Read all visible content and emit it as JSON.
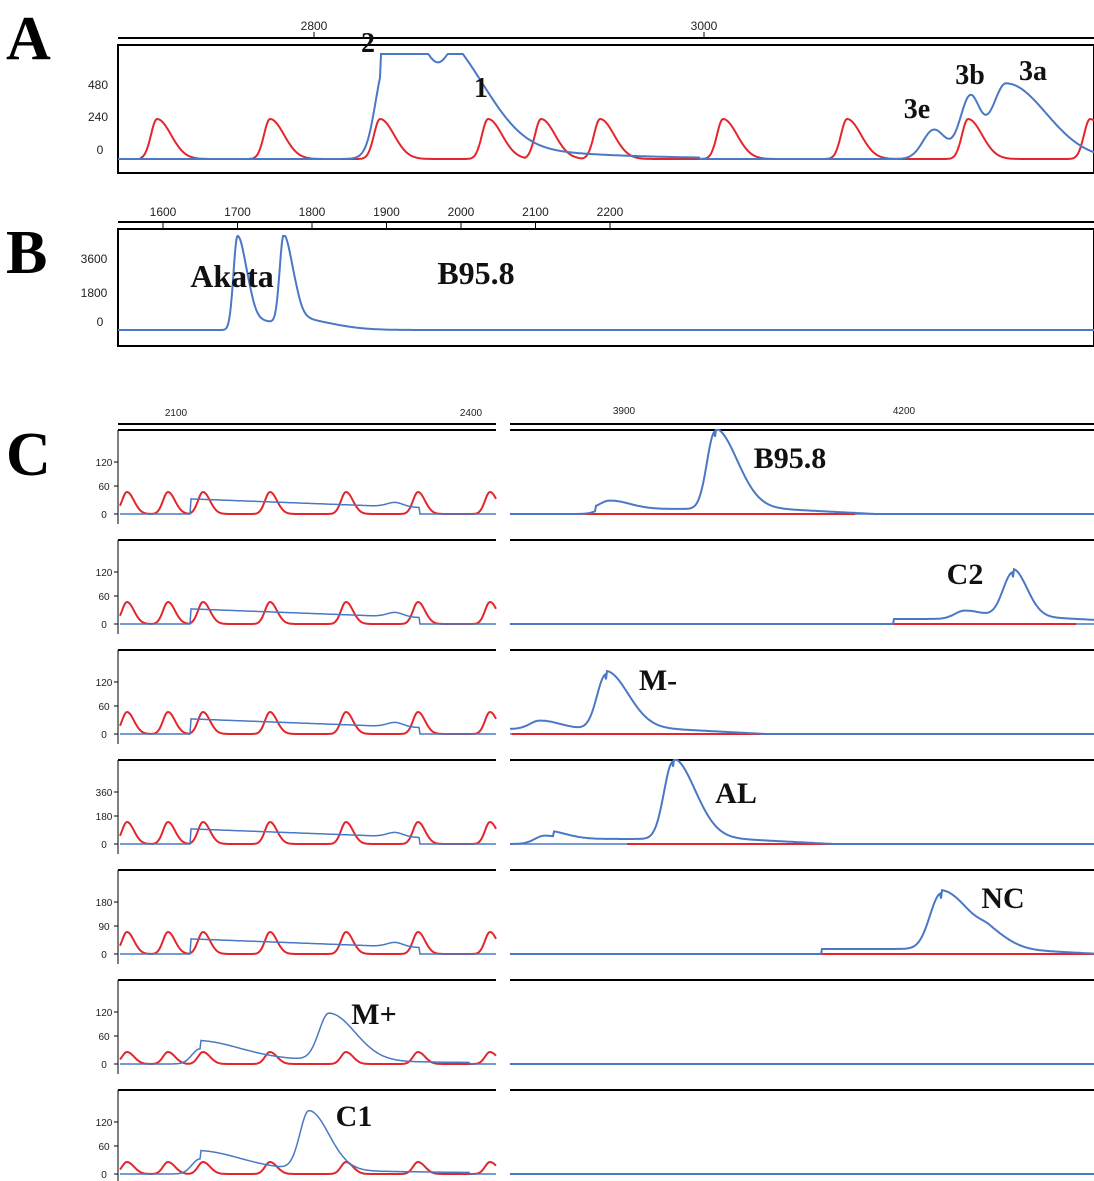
{
  "panel_labels": {
    "a": "A",
    "b": "B",
    "c": "C"
  },
  "colors": {
    "blue": "#4a78c4",
    "red": "#e2262b",
    "axis": "#000000"
  },
  "chart_data": [
    {
      "id": "A",
      "type": "line",
      "x_ticks": [
        "2800",
        "3000"
      ],
      "y_ticks": [
        "480",
        "240",
        "0"
      ],
      "blue_peaks": [
        {
          "label": "2",
          "rel_height": 0.78
        },
        {
          "label": "1",
          "rel_height": 0.58
        },
        {
          "label": "3e",
          "rel_height": 0.28
        },
        {
          "label": "3b",
          "rel_height": 0.58
        },
        {
          "label": "3a",
          "rel_height": 0.72
        }
      ],
      "annotations": [
        "2",
        "1",
        "3e",
        "3b",
        "3a"
      ]
    },
    {
      "id": "B",
      "type": "line",
      "x_ticks": [
        "1600",
        "1700",
        "1800",
        "1900",
        "2000",
        "2100",
        "2200"
      ],
      "y_ticks": [
        "3600",
        "1800",
        "0"
      ],
      "peaks": [
        {
          "label": "Akata",
          "x": 1700,
          "y": 3700
        },
        {
          "label": "B95.8",
          "x": 1762,
          "y": 3500
        }
      ]
    },
    {
      "id": "C",
      "type": "line",
      "x_ticks_left": [
        "2100",
        "2400"
      ],
      "x_ticks_right": [
        "3900",
        "4200"
      ],
      "rows": [
        {
          "label": "B95.8",
          "y_ticks": [
            "120",
            "60",
            "0"
          ]
        },
        {
          "label": "C2",
          "y_ticks": [
            "120",
            "60",
            "0"
          ]
        },
        {
          "label": "M-",
          "y_ticks": [
            "120",
            "60",
            "0"
          ]
        },
        {
          "label": "AL",
          "y_ticks": [
            "360",
            "180",
            "0"
          ]
        },
        {
          "label": "NC",
          "y_ticks": [
            "180",
            "90",
            "0"
          ]
        },
        {
          "label": "M+",
          "y_ticks": [
            "120",
            "60",
            "0"
          ]
        },
        {
          "label": "C1",
          "y_ticks": [
            "120",
            "60",
            "0"
          ]
        }
      ]
    }
  ]
}
